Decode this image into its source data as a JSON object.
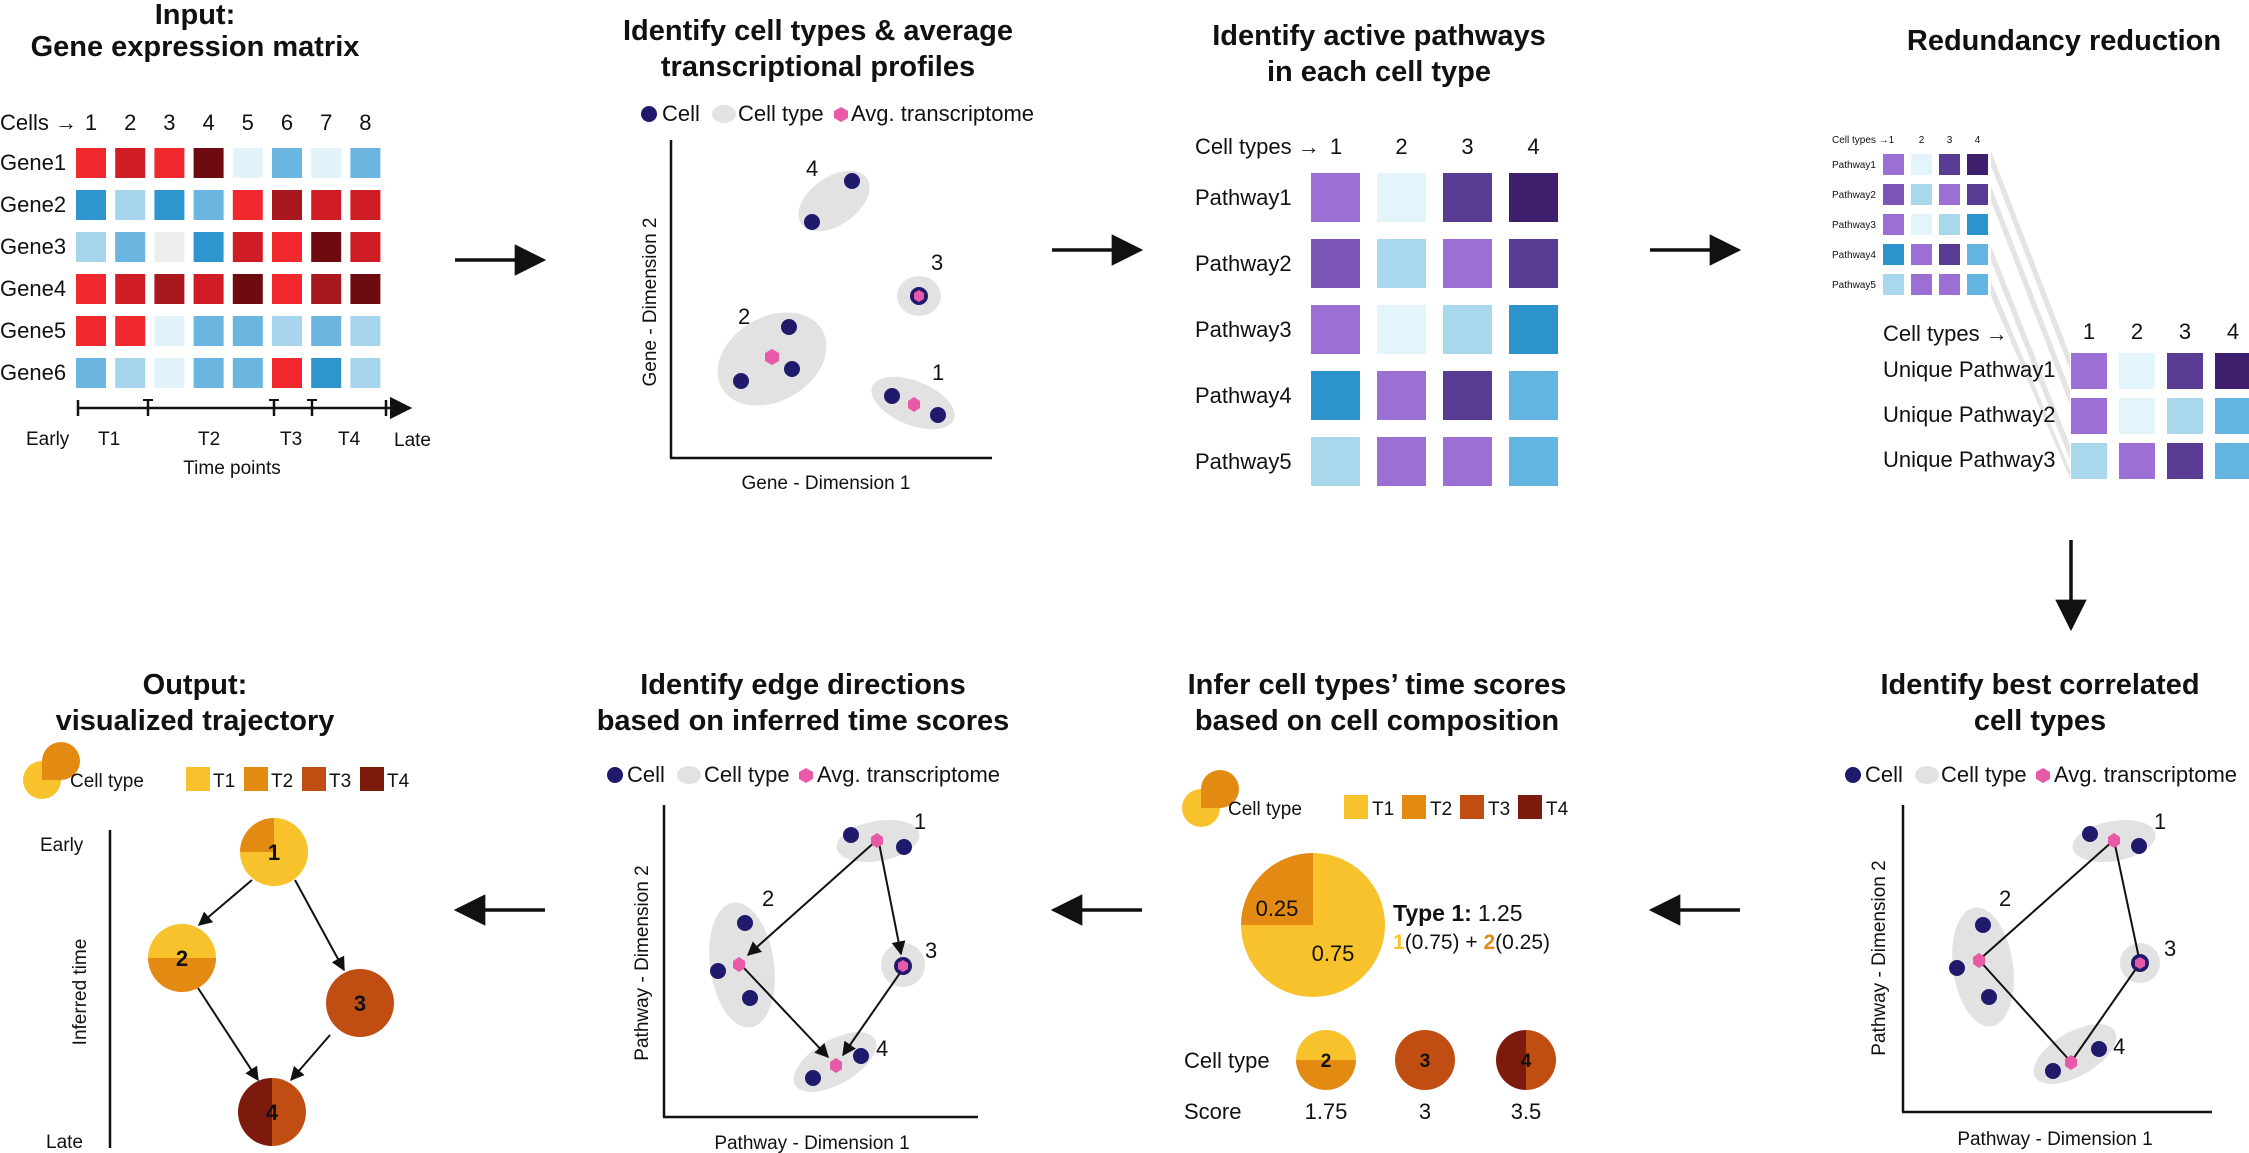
{
  "colors": {
    "cell": "#1f1a6b",
    "avg": "#e85aa8",
    "type_ellipse": "#e2e2e2",
    "T1": "#f7c22b",
    "T2": "#e38a12",
    "T3": "#c04e12",
    "T4": "#7d1a0e",
    "expr": {
      "r1": "#f2282f",
      "r2": "#d01c24",
      "r3": "#a8181e",
      "r4": "#6e0b10",
      "b1": "#2f95cf",
      "b2": "#6ab6e0",
      "b3": "#a8d5ee",
      "b4": "#e3f3fb",
      "g": "#eeeeee"
    },
    "path": {
      "p1": "#9b6fd3",
      "p2": "#7a55b5",
      "p3": "#5a3b94",
      "p4": "#3e1f6e",
      "l1": "#e3f4fb",
      "l2": "#a9d8ec",
      "l3": "#63b4e0",
      "l4": "#2d93cc"
    }
  },
  "panel1": {
    "title1": "Input:",
    "title2": "Gene expression matrix",
    "cells_label": "Cells →",
    "cols": [
      "1",
      "2",
      "3",
      "4",
      "5",
      "6",
      "7",
      "8"
    ],
    "rows": [
      "Gene1",
      "Gene2",
      "Gene3",
      "Gene4",
      "Gene5",
      "Gene6"
    ],
    "matrix": [
      [
        "r1",
        "r2",
        "r1",
        "r4",
        "b4",
        "b2",
        "b4",
        "b2"
      ],
      [
        "b1",
        "b3",
        "b1",
        "b2",
        "r1",
        "r3",
        "r2",
        "r2"
      ],
      [
        "b3",
        "b2",
        "g",
        "b1",
        "r2",
        "r1",
        "r4",
        "r2"
      ],
      [
        "r1",
        "r2",
        "r3",
        "r2",
        "r4",
        "r1",
        "r3",
        "r4"
      ],
      [
        "r1",
        "r1",
        "b4",
        "b2",
        "b2",
        "b3",
        "b2",
        "b3"
      ],
      [
        "b2",
        "b3",
        "b4",
        "b2",
        "b2",
        "r1",
        "b1",
        "b3"
      ]
    ],
    "axis_start": "Early",
    "axis_end": "Late",
    "time_labels": [
      "T1",
      "T2",
      "T3",
      "T4"
    ],
    "axis_title": "Time points"
  },
  "panel2": {
    "title1": "Identify cell types & average",
    "title2": "transcriptional profiles",
    "legend": [
      "Cell",
      "Cell type",
      "Avg. transcriptome"
    ],
    "xlabel": "Gene - Dimension 1",
    "ylabel": "Gene - Dimension 2",
    "cluster_labels": [
      "1",
      "2",
      "3",
      "4"
    ]
  },
  "panel3": {
    "title1": "Identify active pathways",
    "title2": "in each cell type",
    "header": "Cell types →",
    "cols": [
      "1",
      "2",
      "3",
      "4"
    ],
    "rows": [
      "Pathway1",
      "Pathway2",
      "Pathway3",
      "Pathway4",
      "Pathway5"
    ],
    "matrix": [
      [
        "p1",
        "l1",
        "p3",
        "p4"
      ],
      [
        "p2",
        "l2",
        "p1",
        "p3"
      ],
      [
        "p1",
        "l1",
        "l2",
        "l4"
      ],
      [
        "l4",
        "p1",
        "p3",
        "l3"
      ],
      [
        "l2",
        "p1",
        "p1",
        "l3"
      ]
    ]
  },
  "panel4": {
    "title": "Redundancy reduction",
    "mini_header": "Cell types →1",
    "mini_cols": [
      "2",
      "3",
      "4"
    ],
    "mini_rows": [
      "Pathway1",
      "Pathway2",
      "Pathway3",
      "Pathway4",
      "Pathway5"
    ],
    "mini_matrix": [
      [
        "p1",
        "l1",
        "p3",
        "p4"
      ],
      [
        "p2",
        "l2",
        "p1",
        "p3"
      ],
      [
        "p1",
        "l1",
        "l2",
        "l4"
      ],
      [
        "l4",
        "p1",
        "p3",
        "l3"
      ],
      [
        "l2",
        "p1",
        "p1",
        "l3"
      ]
    ],
    "header": "Cell types →",
    "cols": [
      "1",
      "2",
      "3",
      "4"
    ],
    "rows": [
      "Unique Pathway1",
      "Unique Pathway2",
      "Unique Pathway3"
    ],
    "matrix": [
      [
        "p1",
        "l1",
        "p3",
        "p4"
      ],
      [
        "p1",
        "l1",
        "l2",
        "l3"
      ],
      [
        "l2",
        "p1",
        "p3",
        "l3"
      ]
    ]
  },
  "panel5": {
    "title1": "Identify best correlated",
    "title2": "cell types",
    "legend": [
      "Cell",
      "Cell type",
      "Avg. transcriptome"
    ],
    "xlabel": "Pathway - Dimension 1",
    "ylabel": "Pathway - Dimension 2",
    "cluster_labels": [
      "1",
      "2",
      "3",
      "4"
    ]
  },
  "panel6": {
    "title1": "Infer cell types’ time scores",
    "title2": "based on cell composition",
    "legend_pie": "Cell type",
    "legend_times": [
      "T1",
      "T2",
      "T3",
      "T4"
    ],
    "big_pie": {
      "fraction_T1": 0.75,
      "fraction_T2": 0.25,
      "label_T1": "0.75",
      "label_T2": "0.25"
    },
    "type1_label": "Type 1:",
    "type1_value": "1.25",
    "formula_a": "1",
    "formula_b": "(0.75) + ",
    "formula_c": "2",
    "formula_d": "(0.25)",
    "row_celltype": "Cell type",
    "row_score": "Score",
    "types": [
      "2",
      "3",
      "4"
    ],
    "scores": [
      "1.75",
      "3",
      "3.5"
    ]
  },
  "panel7": {
    "title1": "Identify edge directions",
    "title2": "based on inferred time scores",
    "legend": [
      "Cell",
      "Cell type",
      "Avg. transcriptome"
    ],
    "xlabel": "Pathway - Dimension 1",
    "ylabel": "Pathway - Dimension 2",
    "cluster_labels": [
      "1",
      "2",
      "3",
      "4"
    ]
  },
  "panel8": {
    "title1": "Output:",
    "title2": "visualized trajectory",
    "legend_pie": "Cell type",
    "legend_times": [
      "T1",
      "T2",
      "T3",
      "T4"
    ],
    "axis_top": "Early",
    "axis_bottom": "Late",
    "axis_label": "Inferred time",
    "nodes": [
      "1",
      "2",
      "3",
      "4"
    ]
  }
}
